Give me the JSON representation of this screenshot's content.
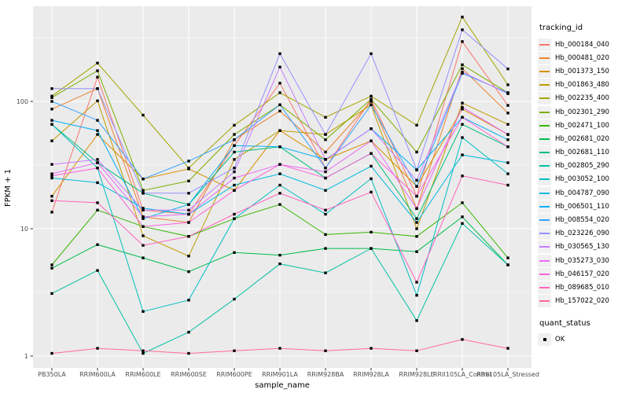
{
  "chart_data": {
    "type": "line",
    "title": "",
    "xlabel": "sample_name",
    "ylabel": "FPKM + 1",
    "y_scale": "log10",
    "y_ticks": [
      1,
      10,
      100
    ],
    "y_minor_ticks": [
      3.162,
      31.62,
      316.2
    ],
    "ylim": [
      0.85,
      520
    ],
    "grid": true,
    "panel_bg": "#ebebeb",
    "grid_color": "#ffffff",
    "tick_label_color": "#4d4d4d",
    "axis_title_color": "#000000",
    "point_color": "#000000",
    "point_shape": "square",
    "x_categories": [
      "PB350LA",
      "RRIM600LA",
      "RRIM600LE",
      "RRIM600SE",
      "RRIM600PE",
      "RRIM901LA",
      "RRIM928BA",
      "RRIM928LA",
      "RRIM928LE",
      "RRII105LA_Control",
      "RRII105LA_Stressed"
    ],
    "legend": {
      "title": "tracking_id",
      "position": "right"
    },
    "legend2": {
      "title": "quant_status",
      "items": [
        {
          "label": "OK",
          "marker": "square",
          "color": "#000000"
        }
      ]
    },
    "series": [
      {
        "name": "Hb_000184_040",
        "color": "#F8766D",
        "values": [
          13.5,
          155,
          14,
          13,
          45,
          139,
          30,
          104,
          18,
          295,
          93
        ]
      },
      {
        "name": "Hb_000481_020",
        "color": "#EA8331",
        "values": [
          87,
          126,
          12.4,
          11.2,
          50,
          84,
          40,
          100,
          14.4,
          181,
          81
        ]
      },
      {
        "name": "Hb_001373_150",
        "color": "#D89000",
        "values": [
          18,
          55,
          24.6,
          29.5,
          20,
          59,
          35,
          49,
          21.5,
          87,
          55
        ]
      },
      {
        "name": "Hb_001863_480",
        "color": "#C09B00",
        "values": [
          49,
          101,
          8.8,
          6.1,
          35,
          59,
          55,
          94,
          10,
          97,
          66
        ]
      },
      {
        "name": "Hb_002235_400",
        "color": "#A3A500",
        "values": [
          110,
          200,
          78,
          30,
          65,
          117,
          75,
          110,
          65,
          460,
          135
        ]
      },
      {
        "name": "Hb_002301_290",
        "color": "#7CAE00",
        "values": [
          107,
          174,
          20,
          23.7,
          55,
          94,
          50,
          104,
          40,
          194,
          117
        ]
      },
      {
        "name": "Hb_002471_100",
        "color": "#39B600",
        "values": [
          5.2,
          14,
          10.4,
          8.7,
          12,
          15.5,
          9,
          9.4,
          8.7,
          16,
          5.9
        ]
      },
      {
        "name": "Hb_002681_020",
        "color": "#00BB4E",
        "values": [
          4.9,
          7.5,
          5.9,
          4.6,
          6.5,
          6.2,
          7,
          7,
          6.6,
          12.4,
          5.2
        ]
      },
      {
        "name": "Hb_002681_110",
        "color": "#00BF7D",
        "values": [
          66,
          33,
          19,
          15.5,
          40,
          44,
          25,
          39,
          12,
          66,
          44
        ]
      },
      {
        "name": "Hb_002805_290",
        "color": "#00C1A3",
        "values": [
          3.1,
          4.7,
          1.05,
          1.54,
          2.8,
          5.3,
          4.5,
          7,
          1.9,
          11,
          5.2
        ]
      },
      {
        "name": "Hb_003052_100",
        "color": "#00BFC4",
        "values": [
          66,
          30,
          2.24,
          2.75,
          12,
          22,
          13,
          24.7,
          3.0,
          52,
          27
        ]
      },
      {
        "name": "Hb_004787_090",
        "color": "#00BAE0",
        "values": [
          25,
          23,
          14.5,
          13,
          22,
          27,
          20,
          31,
          11.2,
          38,
          33
        ]
      },
      {
        "name": "Hb_006501_110",
        "color": "#00B0F6",
        "values": [
          71,
          59,
          12,
          15.5,
          45,
          44,
          35,
          61,
          29,
          75,
          50
        ]
      },
      {
        "name": "Hb_008554_020",
        "color": "#35A2FF",
        "values": [
          100,
          71,
          24.6,
          34,
          50,
          94,
          30,
          94,
          21.5,
          166,
          117
        ]
      },
      {
        "name": "Hb_023226_090",
        "color": "#9590FF",
        "values": [
          126,
          126,
          19,
          19,
          30,
          237,
          55,
          237,
          29,
          365,
          180
        ]
      },
      {
        "name": "Hb_030565_130",
        "color": "#C77CFF",
        "values": [
          32,
          35,
          14,
          14,
          28,
          186,
          35,
          61,
          24,
          170,
          115
        ]
      },
      {
        "name": "Hb_035273_030",
        "color": "#E76BF3",
        "values": [
          27,
          33,
          12.4,
          13,
          25,
          32,
          28,
          49,
          14.4,
          90,
          55
        ]
      },
      {
        "name": "Hb_046157_020",
        "color": "#FA62DB",
        "values": [
          26,
          30,
          10.4,
          11.2,
          20,
          32,
          25,
          39,
          18,
          75,
          44
        ]
      },
      {
        "name": "Hb_089685_010",
        "color": "#FF62BC",
        "values": [
          16.6,
          16,
          7.4,
          8.7,
          13,
          19,
          14,
          19.4,
          3.8,
          26,
          22
        ]
      },
      {
        "name": "Hb_157022_020",
        "color": "#FF6A98",
        "values": [
          1.05,
          1.15,
          1.1,
          1.05,
          1.1,
          1.15,
          1.1,
          1.15,
          1.1,
          1.35,
          1.15
        ]
      }
    ]
  }
}
